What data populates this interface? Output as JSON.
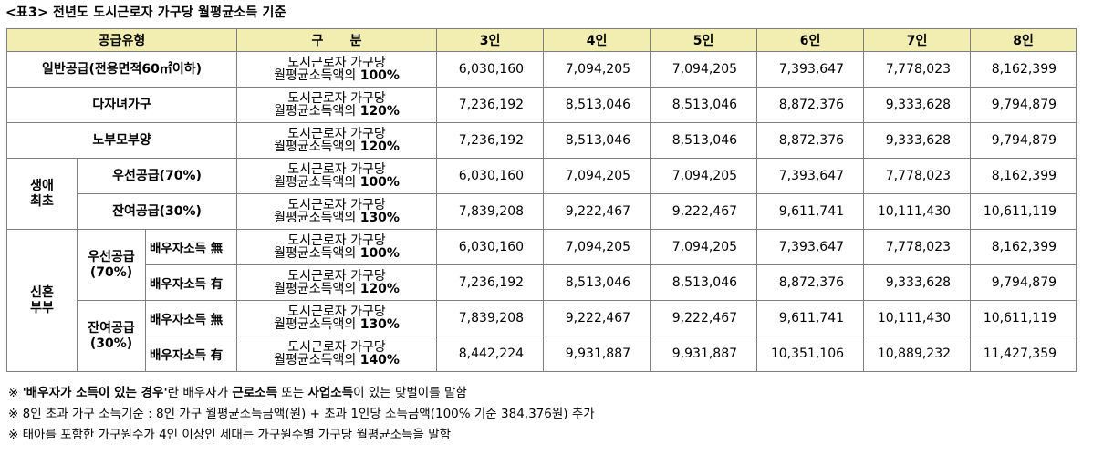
{
  "title": "<표3>  전년도 도시근로자 가구당 월평균소득 기준",
  "header": {
    "type": "공급유형",
    "division": "구      분",
    "cols": [
      "3인",
      "4인",
      "5인",
      "6인",
      "7인",
      "8인"
    ]
  },
  "groups": {
    "first": "생애최초",
    "newlywed": "신혼부부"
  },
  "labels": {
    "general": "일반공급(전용면적60㎡이하)",
    "multichild": "다자녀가구",
    "elderly": "노부모부양",
    "first_priority": "우선공급(70%)",
    "first_remaining": "잔여공급(30%)",
    "nw_priority": "우선공급\n(70%)",
    "nw_remaining": "잔여공급\n(30%)",
    "spouse_none": "배우자소득 無",
    "spouse_has": "배우자소득 有"
  },
  "desc_line1": "도시근로자 가구당",
  "desc_line2": "월평균소득액의",
  "rows": [
    {
      "pct": "100%",
      "values": [
        "6,030,160",
        "7,094,205",
        "7,094,205",
        "7,393,647",
        "7,778,023",
        "8,162,399"
      ]
    },
    {
      "pct": "120%",
      "values": [
        "7,236,192",
        "8,513,046",
        "8,513,046",
        "8,872,376",
        "9,333,628",
        "9,794,879"
      ]
    },
    {
      "pct": "120%",
      "values": [
        "7,236,192",
        "8,513,046",
        "8,513,046",
        "8,872,376",
        "9,333,628",
        "9,794,879"
      ]
    },
    {
      "pct": "100%",
      "values": [
        "6,030,160",
        "7,094,205",
        "7,094,205",
        "7,393,647",
        "7,778,023",
        "8,162,399"
      ]
    },
    {
      "pct": "130%",
      "values": [
        "7,839,208",
        "9,222,467",
        "9,222,467",
        "9,611,741",
        "10,111,430",
        "10,611,119"
      ]
    },
    {
      "pct": "100%",
      "values": [
        "6,030,160",
        "7,094,205",
        "7,094,205",
        "7,393,647",
        "7,778,023",
        "8,162,399"
      ]
    },
    {
      "pct": "120%",
      "values": [
        "7,236,192",
        "8,513,046",
        "8,513,046",
        "8,872,376",
        "9,333,628",
        "9,794,879"
      ]
    },
    {
      "pct": "130%",
      "values": [
        "7,839,208",
        "9,222,467",
        "9,222,467",
        "9,611,741",
        "10,111,430",
        "10,611,119"
      ]
    },
    {
      "pct": "140%",
      "values": [
        "8,442,224",
        "9,931,887",
        "9,931,887",
        "10,351,106",
        "10,889,232",
        "11,427,359"
      ]
    }
  ],
  "notes": {
    "n1_mark": "※",
    "n1_bold": "'배우자가 소득이 있는 경우'",
    "n1_a": "란 배우자가",
    "n1_b": "근로소득",
    "n1_c": "또는",
    "n1_d": "사업소득",
    "n1_e": "이 있는 맞벌이를 말함",
    "n2": "※ 8인 초과 가구 소득기준 : 8인 가구 월평균소득금액(원) + 초과 1인당 소득금액(100% 기준 384,376원) 추가",
    "n3": "※ 태아를 포함한 가구원수가 4인 이상인 세대는 가구원수별 가구당 월평균소득을 말함"
  }
}
